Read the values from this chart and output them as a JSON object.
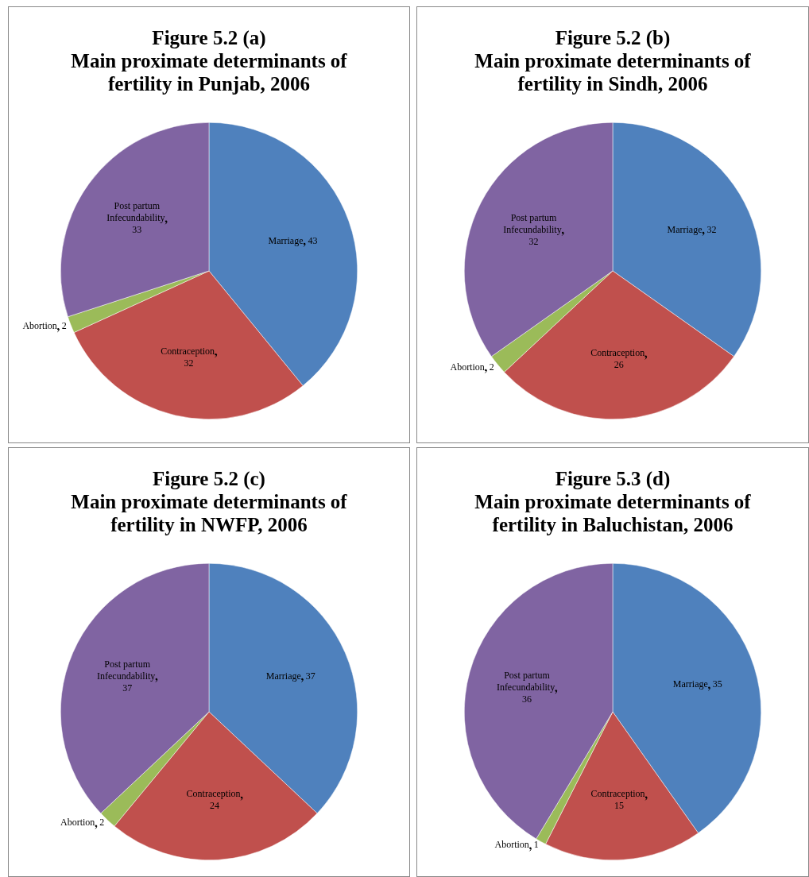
{
  "chart_data": [
    {
      "type": "pie",
      "title": "Figure 5.2 (a)\nMain proximate determinants of\nfertility in Punjab, 2006",
      "categories": [
        "Marriage",
        "Contraception",
        "Abortion",
        "Post partum Infecundability"
      ],
      "values": [
        43,
        32,
        2,
        33
      ],
      "data_labels": true,
      "colors": [
        "#4f81bd",
        "#c0504d",
        "#9bbb59",
        "#8064a2"
      ],
      "legend": false
    },
    {
      "type": "pie",
      "title": "Figure 5.2 (b)\nMain proximate determinants of\nfertility in Sindh, 2006",
      "categories": [
        "Marriage",
        "Contraception",
        "Abortion",
        "Post partum Infecundability"
      ],
      "values": [
        32,
        26,
        2,
        32
      ],
      "data_labels": true,
      "colors": [
        "#4f81bd",
        "#c0504d",
        "#9bbb59",
        "#8064a2"
      ],
      "legend": false
    },
    {
      "type": "pie",
      "title": "Figure 5.2 (c)\nMain proximate determinants of\nfertility in NWFP, 2006",
      "categories": [
        "Marriage",
        "Contraception",
        "Abortion",
        "Post partum Infecundability"
      ],
      "values": [
        37,
        24,
        2,
        37
      ],
      "data_labels": true,
      "colors": [
        "#4f81bd",
        "#c0504d",
        "#9bbb59",
        "#8064a2"
      ],
      "legend": false
    },
    {
      "type": "pie",
      "title": "Figure 5.3 (d)\nMain proximate determinants of\nfertility in Baluchistan, 2006",
      "categories": [
        "Marriage",
        "Contraception",
        "Abortion",
        "Post partum Infecundability"
      ],
      "values": [
        35,
        15,
        1,
        36
      ],
      "data_labels": true,
      "colors": [
        "#4f81bd",
        "#c0504d",
        "#9bbb59",
        "#8064a2"
      ],
      "legend": false
    }
  ]
}
